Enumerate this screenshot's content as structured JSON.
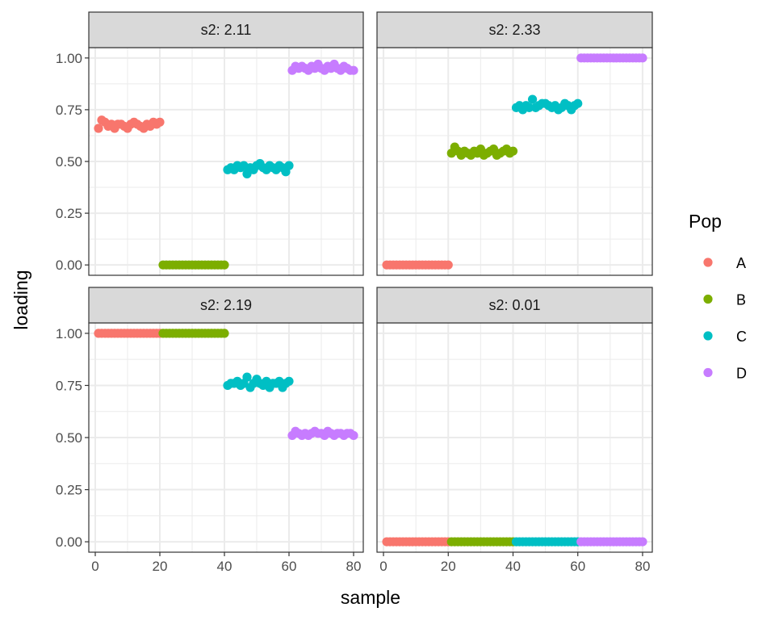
{
  "chart_data": {
    "type": "scatter",
    "xlabel": "sample",
    "ylabel": "loading",
    "xlim": [
      -2,
      83
    ],
    "ylim": [
      -0.05,
      1.05
    ],
    "x_ticks": [
      0,
      20,
      40,
      60,
      80
    ],
    "x_tick_labels": [
      "0",
      "20",
      "40",
      "60",
      "80"
    ],
    "y_ticks": [
      0,
      0.25,
      0.5,
      0.75,
      1
    ],
    "y_tick_labels": [
      "0.00",
      "0.25",
      "0.50",
      "0.75",
      "1.00"
    ],
    "grid": true,
    "legend": {
      "title": "Pop",
      "position": "right",
      "entries": [
        {
          "label": "A",
          "color": "#F8766D"
        },
        {
          "label": "B",
          "color": "#7CAE00"
        },
        {
          "label": "C",
          "color": "#00BFC4"
        },
        {
          "label": "D",
          "color": "#C77CFF"
        }
      ]
    },
    "panels": [
      {
        "strip": "s2: 2.11",
        "series": [
          {
            "name": "A",
            "x": [
              1,
              2,
              3,
              4,
              5,
              6,
              7,
              8,
              9,
              10,
              11,
              12,
              13,
              14,
              15,
              16,
              17,
              18,
              19,
              20
            ],
            "y": [
              0.66,
              0.7,
              0.69,
              0.67,
              0.68,
              0.66,
              0.68,
              0.68,
              0.67,
              0.66,
              0.68,
              0.69,
              0.68,
              0.67,
              0.66,
              0.68,
              0.67,
              0.69,
              0.68,
              0.69
            ]
          },
          {
            "name": "B",
            "x": [
              21,
              22,
              23,
              24,
              25,
              26,
              27,
              28,
              29,
              30,
              31,
              32,
              33,
              34,
              35,
              36,
              37,
              38,
              39,
              40
            ],
            "y": [
              0,
              0,
              0,
              0,
              0,
              0,
              0,
              0,
              0,
              0,
              0,
              0,
              0,
              0,
              0,
              0,
              0,
              0,
              0,
              0
            ]
          },
          {
            "name": "C",
            "x": [
              41,
              42,
              43,
              44,
              45,
              46,
              47,
              48,
              49,
              50,
              51,
              52,
              53,
              54,
              55,
              56,
              57,
              58,
              59,
              60
            ],
            "y": [
              0.46,
              0.47,
              0.46,
              0.48,
              0.47,
              0.48,
              0.44,
              0.47,
              0.46,
              0.48,
              0.49,
              0.47,
              0.46,
              0.48,
              0.47,
              0.46,
              0.48,
              0.47,
              0.45,
              0.48
            ]
          },
          {
            "name": "D",
            "x": [
              61,
              62,
              63,
              64,
              65,
              66,
              67,
              68,
              69,
              70,
              71,
              72,
              73,
              74,
              75,
              76,
              77,
              78,
              79,
              80
            ],
            "y": [
              0.94,
              0.96,
              0.95,
              0.96,
              0.95,
              0.94,
              0.96,
              0.95,
              0.97,
              0.95,
              0.94,
              0.96,
              0.95,
              0.97,
              0.95,
              0.94,
              0.96,
              0.95,
              0.94,
              0.94
            ]
          }
        ]
      },
      {
        "strip": "s2: 2.33",
        "series": [
          {
            "name": "A",
            "x": [
              1,
              2,
              3,
              4,
              5,
              6,
              7,
              8,
              9,
              10,
              11,
              12,
              13,
              14,
              15,
              16,
              17,
              18,
              19,
              20
            ],
            "y": [
              0,
              0,
              0,
              0,
              0,
              0,
              0,
              0,
              0,
              0,
              0,
              0,
              0,
              0,
              0,
              0,
              0,
              0,
              0,
              0
            ]
          },
          {
            "name": "B",
            "x": [
              21,
              22,
              23,
              24,
              25,
              26,
              27,
              28,
              29,
              30,
              31,
              32,
              33,
              34,
              35,
              36,
              37,
              38,
              39,
              40
            ],
            "y": [
              0.54,
              0.57,
              0.55,
              0.53,
              0.55,
              0.54,
              0.53,
              0.55,
              0.54,
              0.56,
              0.53,
              0.54,
              0.55,
              0.56,
              0.53,
              0.54,
              0.55,
              0.56,
              0.54,
              0.55
            ]
          },
          {
            "name": "C",
            "x": [
              41,
              42,
              43,
              44,
              45,
              46,
              47,
              48,
              49,
              50,
              51,
              52,
              53,
              54,
              55,
              56,
              57,
              58,
              59,
              60
            ],
            "y": [
              0.76,
              0.77,
              0.75,
              0.77,
              0.76,
              0.8,
              0.76,
              0.77,
              0.78,
              0.78,
              0.77,
              0.76,
              0.77,
              0.75,
              0.76,
              0.78,
              0.77,
              0.75,
              0.77,
              0.78
            ]
          },
          {
            "name": "D",
            "x": [
              61,
              62,
              63,
              64,
              65,
              66,
              67,
              68,
              69,
              70,
              71,
              72,
              73,
              74,
              75,
              76,
              77,
              78,
              79,
              80
            ],
            "y": [
              1,
              1,
              1,
              1,
              1,
              1,
              1,
              1,
              1,
              1,
              1,
              1,
              1,
              1,
              1,
              1,
              1,
              1,
              1,
              1
            ]
          }
        ]
      },
      {
        "strip": "s2: 2.19",
        "series": [
          {
            "name": "A",
            "x": [
              1,
              2,
              3,
              4,
              5,
              6,
              7,
              8,
              9,
              10,
              11,
              12,
              13,
              14,
              15,
              16,
              17,
              18,
              19,
              20
            ],
            "y": [
              1,
              1,
              1,
              1,
              1,
              1,
              1,
              1,
              1,
              1,
              1,
              1,
              1,
              1,
              1,
              1,
              1,
              1,
              1,
              1
            ]
          },
          {
            "name": "B",
            "x": [
              21,
              22,
              23,
              24,
              25,
              26,
              27,
              28,
              29,
              30,
              31,
              32,
              33,
              34,
              35,
              36,
              37,
              38,
              39,
              40
            ],
            "y": [
              1,
              1,
              1,
              1,
              1,
              1,
              1,
              1,
              1,
              1,
              1,
              1,
              1,
              1,
              1,
              1,
              1,
              1,
              1,
              1
            ]
          },
          {
            "name": "C",
            "x": [
              41,
              42,
              43,
              44,
              45,
              46,
              47,
              48,
              49,
              50,
              51,
              52,
              53,
              54,
              55,
              56,
              57,
              58,
              59,
              60
            ],
            "y": [
              0.75,
              0.76,
              0.76,
              0.77,
              0.75,
              0.76,
              0.79,
              0.74,
              0.76,
              0.78,
              0.76,
              0.75,
              0.77,
              0.74,
              0.76,
              0.76,
              0.77,
              0.74,
              0.76,
              0.77
            ]
          },
          {
            "name": "D",
            "x": [
              61,
              62,
              63,
              64,
              65,
              66,
              67,
              68,
              69,
              70,
              71,
              72,
              73,
              74,
              75,
              76,
              77,
              78,
              79,
              80
            ],
            "y": [
              0.51,
              0.53,
              0.52,
              0.51,
              0.52,
              0.51,
              0.52,
              0.53,
              0.52,
              0.52,
              0.51,
              0.53,
              0.52,
              0.51,
              0.52,
              0.52,
              0.51,
              0.52,
              0.52,
              0.51
            ]
          }
        ]
      },
      {
        "strip": "s2: 0.01",
        "series": [
          {
            "name": "A",
            "x": [
              1,
              2,
              3,
              4,
              5,
              6,
              7,
              8,
              9,
              10,
              11,
              12,
              13,
              14,
              15,
              16,
              17,
              18,
              19,
              20
            ],
            "y": [
              0,
              0,
              0,
              0,
              0,
              0,
              0,
              0,
              0,
              0,
              0,
              0,
              0,
              0,
              0,
              0,
              0,
              0,
              0,
              0
            ]
          },
          {
            "name": "B",
            "x": [
              21,
              22,
              23,
              24,
              25,
              26,
              27,
              28,
              29,
              30,
              31,
              32,
              33,
              34,
              35,
              36,
              37,
              38,
              39,
              40
            ],
            "y": [
              0,
              0,
              0,
              0,
              0,
              0,
              0,
              0,
              0,
              0,
              0,
              0,
              0,
              0,
              0,
              0,
              0,
              0,
              0,
              0
            ]
          },
          {
            "name": "C",
            "x": [
              41,
              42,
              43,
              44,
              45,
              46,
              47,
              48,
              49,
              50,
              51,
              52,
              53,
              54,
              55,
              56,
              57,
              58,
              59,
              60
            ],
            "y": [
              0,
              0,
              0,
              0,
              0,
              0,
              0,
              0,
              0,
              0,
              0,
              0,
              0,
              0,
              0,
              0,
              0,
              0,
              0,
              0
            ]
          },
          {
            "name": "D",
            "x": [
              61,
              62,
              63,
              64,
              65,
              66,
              67,
              68,
              69,
              70,
              71,
              72,
              73,
              74,
              75,
              76,
              77,
              78,
              79,
              80
            ],
            "y": [
              0,
              0,
              0,
              0,
              0,
              0,
              0,
              0,
              0,
              0,
              0,
              0,
              0,
              0,
              0,
              0,
              0,
              0,
              0,
              0
            ]
          }
        ]
      }
    ]
  }
}
